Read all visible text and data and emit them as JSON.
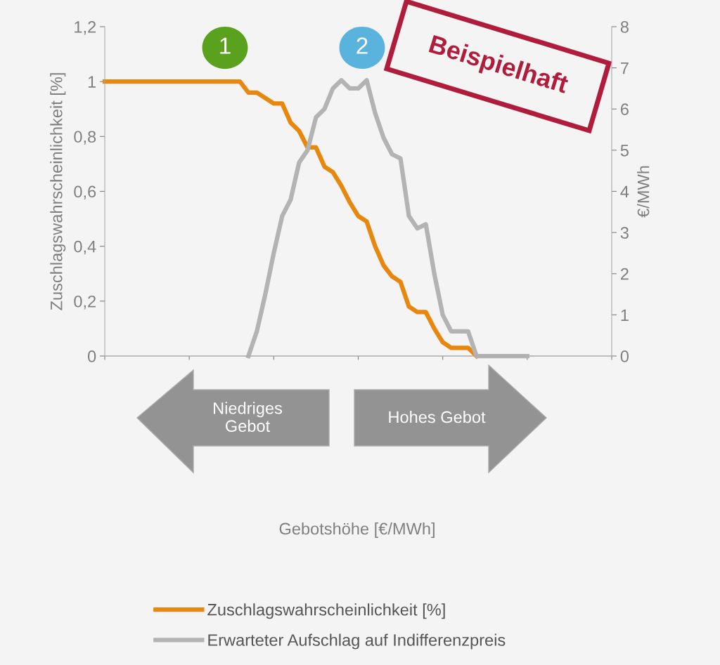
{
  "chart_data": {
    "type": "line",
    "categories": [
      null,
      null,
      null,
      null,
      null,
      null,
      null,
      null,
      null,
      null,
      null,
      null,
      null,
      null,
      null,
      null,
      null,
      null,
      null,
      null,
      null,
      null,
      null,
      null,
      null,
      null,
      null,
      null,
      null,
      null,
      null,
      null,
      null,
      null,
      null,
      null,
      null,
      null,
      null,
      null,
      null,
      null,
      null,
      null,
      null,
      null,
      null,
      null,
      null,
      null,
      null,
      null,
      null,
      null,
      null,
      null,
      null,
      null,
      null,
      null,
      null
    ],
    "ylabel": "Zuschlagswahrscheinlichkeit [%]",
    "y2label": "€/MWh",
    "series": [
      {
        "name": "Zuschlagswahrscheinlichkeit [%]",
        "color": "#e8870e",
        "values": [
          1,
          1,
          1,
          1,
          1,
          1,
          1,
          1,
          1,
          1,
          1,
          1,
          1,
          1,
          1,
          1,
          1,
          0.96,
          0.96,
          0.94,
          0.92,
          0.92,
          0.85,
          0.82,
          0.76,
          0.76,
          0.69,
          0.67,
          0.62,
          0.56,
          0.51,
          0.49,
          0.4,
          0.33,
          0.29,
          0.27,
          0.18,
          0.16,
          0.16,
          0.1,
          0.05,
          0.03,
          0.03,
          0.03,
          0,
          null,
          null,
          null,
          null,
          null,
          null,
          null,
          null,
          null,
          null,
          null,
          null,
          null,
          null,
          null,
          null
        ]
      },
      {
        "name": "Erwarteter Aufschlag auf Indifferenzpreis",
        "color": "#b3b3b3",
        "axis": "y2",
        "values": [
          null,
          null,
          null,
          null,
          null,
          null,
          null,
          null,
          null,
          null,
          null,
          null,
          null,
          null,
          null,
          null,
          null,
          0,
          0.6,
          1.5,
          2.5,
          3.4,
          3.8,
          4.7,
          5.0,
          5.8,
          6.0,
          6.5,
          6.7,
          6.5,
          6.5,
          6.7,
          5.9,
          5.3,
          4.9,
          4.8,
          3.4,
          3.1,
          3.2,
          2.0,
          1.0,
          0.6,
          0.6,
          0.6,
          0,
          0,
          0,
          0,
          0,
          0,
          0,
          null,
          null,
          null,
          null,
          null,
          null,
          null,
          null,
          null,
          null
        ]
      }
    ],
    "ylim": [
      0,
      1.2
    ],
    "yticks": [
      0,
      {
        "value": 0.2,
        "label": "0,2"
      },
      {
        "value": 0.4,
        "label": "0,4"
      },
      {
        "value": 0.6,
        "label": "0,6"
      },
      {
        "value": 0.8,
        "label": "0,8"
      },
      1,
      {
        "value": 1.2,
        "label": "1,2"
      }
    ],
    "y2lim": [
      0,
      8
    ],
    "y2ticks": [
      0,
      1,
      2,
      3,
      4,
      5,
      6,
      7,
      8
    ],
    "tick_labels": "y",
    "grid": false,
    "legend": "bottom",
    "line_style": "solid",
    "marker": "none",
    "annotations": [
      "1",
      "2",
      "Beispielhaft",
      "Niedriges\nGebot",
      "Hohes Gebot",
      "Gebotshöhe [€/MWh]"
    ]
  }
}
